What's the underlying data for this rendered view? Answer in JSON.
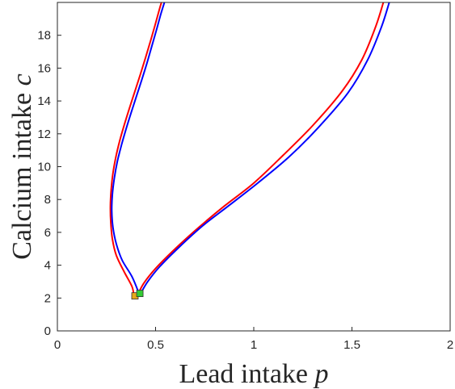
{
  "chart_data": {
    "type": "line",
    "xlabel": "Lead intake ",
    "xlabel_var": "p",
    "ylabel": "Calcium intake ",
    "ylabel_var": "c",
    "xlim": [
      0,
      2
    ],
    "ylim": [
      0,
      20
    ],
    "x_ticks": [
      0,
      0.5,
      1,
      1.5,
      2
    ],
    "x_tick_labels": [
      "0",
      "0.5",
      "1",
      "1.5",
      "2"
    ],
    "y_ticks": [
      0,
      2,
      4,
      6,
      8,
      10,
      12,
      14,
      16,
      18
    ],
    "y_tick_labels": [
      "0",
      "2",
      "4",
      "6",
      "8",
      "10",
      "12",
      "14",
      "16",
      "18"
    ],
    "grid": false,
    "legend": "none",
    "series": [
      {
        "color": "#ff0000",
        "branches": [
          [
            [
              0.39,
              2.1
            ],
            [
              0.38,
              2.7
            ],
            [
              0.34,
              3.6
            ],
            [
              0.3,
              4.6
            ],
            [
              0.28,
              5.6
            ],
            [
              0.272,
              6.6
            ],
            [
              0.27,
              7.6
            ],
            [
              0.274,
              8.6
            ],
            [
              0.283,
              9.6
            ],
            [
              0.298,
              10.6
            ],
            [
              0.318,
              11.6
            ],
            [
              0.342,
              12.6
            ],
            [
              0.368,
              13.6
            ],
            [
              0.395,
              14.6
            ],
            [
              0.422,
              15.6
            ],
            [
              0.448,
              16.6
            ],
            [
              0.473,
              17.6
            ],
            [
              0.497,
              18.6
            ],
            [
              0.52,
              19.6
            ],
            [
              0.53,
              20
            ]
          ],
          [
            [
              0.405,
              2.1
            ],
            [
              0.44,
              2.9
            ],
            [
              0.5,
              3.8
            ],
            [
              0.6,
              5.0
            ],
            [
              0.72,
              6.3
            ],
            [
              0.85,
              7.6
            ],
            [
              1.0,
              9.0
            ],
            [
              1.15,
              10.7
            ],
            [
              1.3,
              12.5
            ],
            [
              1.45,
              14.6
            ],
            [
              1.55,
              16.5
            ],
            [
              1.62,
              18.5
            ],
            [
              1.66,
              20
            ]
          ]
        ]
      },
      {
        "color": "#0000ff",
        "branches": [
          [
            [
              0.415,
              2.3
            ],
            [
              0.38,
              3.3
            ],
            [
              0.33,
              4.3
            ],
            [
              0.3,
              5.3
            ],
            [
              0.283,
              6.3
            ],
            [
              0.277,
              7.3
            ],
            [
              0.28,
              8.3
            ],
            [
              0.29,
              9.3
            ],
            [
              0.305,
              10.3
            ],
            [
              0.326,
              11.3
            ],
            [
              0.35,
              12.3
            ],
            [
              0.376,
              13.3
            ],
            [
              0.403,
              14.3
            ],
            [
              0.43,
              15.3
            ],
            [
              0.456,
              16.3
            ],
            [
              0.48,
              17.3
            ],
            [
              0.504,
              18.3
            ],
            [
              0.527,
              19.3
            ],
            [
              0.545,
              20
            ]
          ],
          [
            [
              0.425,
              2.3
            ],
            [
              0.46,
              3.0
            ],
            [
              0.52,
              3.9
            ],
            [
              0.62,
              5.1
            ],
            [
              0.74,
              6.4
            ],
            [
              0.87,
              7.6
            ],
            [
              1.02,
              9.0
            ],
            [
              1.18,
              10.6
            ],
            [
              1.33,
              12.4
            ],
            [
              1.48,
              14.5
            ],
            [
              1.58,
              16.5
            ],
            [
              1.65,
              18.5
            ],
            [
              1.69,
              20
            ]
          ]
        ]
      }
    ],
    "markers": [
      {
        "x": 0.395,
        "y": 2.13,
        "color": "#e6a817"
      },
      {
        "x": 0.42,
        "y": 2.28,
        "color": "#33cc33"
      }
    ]
  }
}
